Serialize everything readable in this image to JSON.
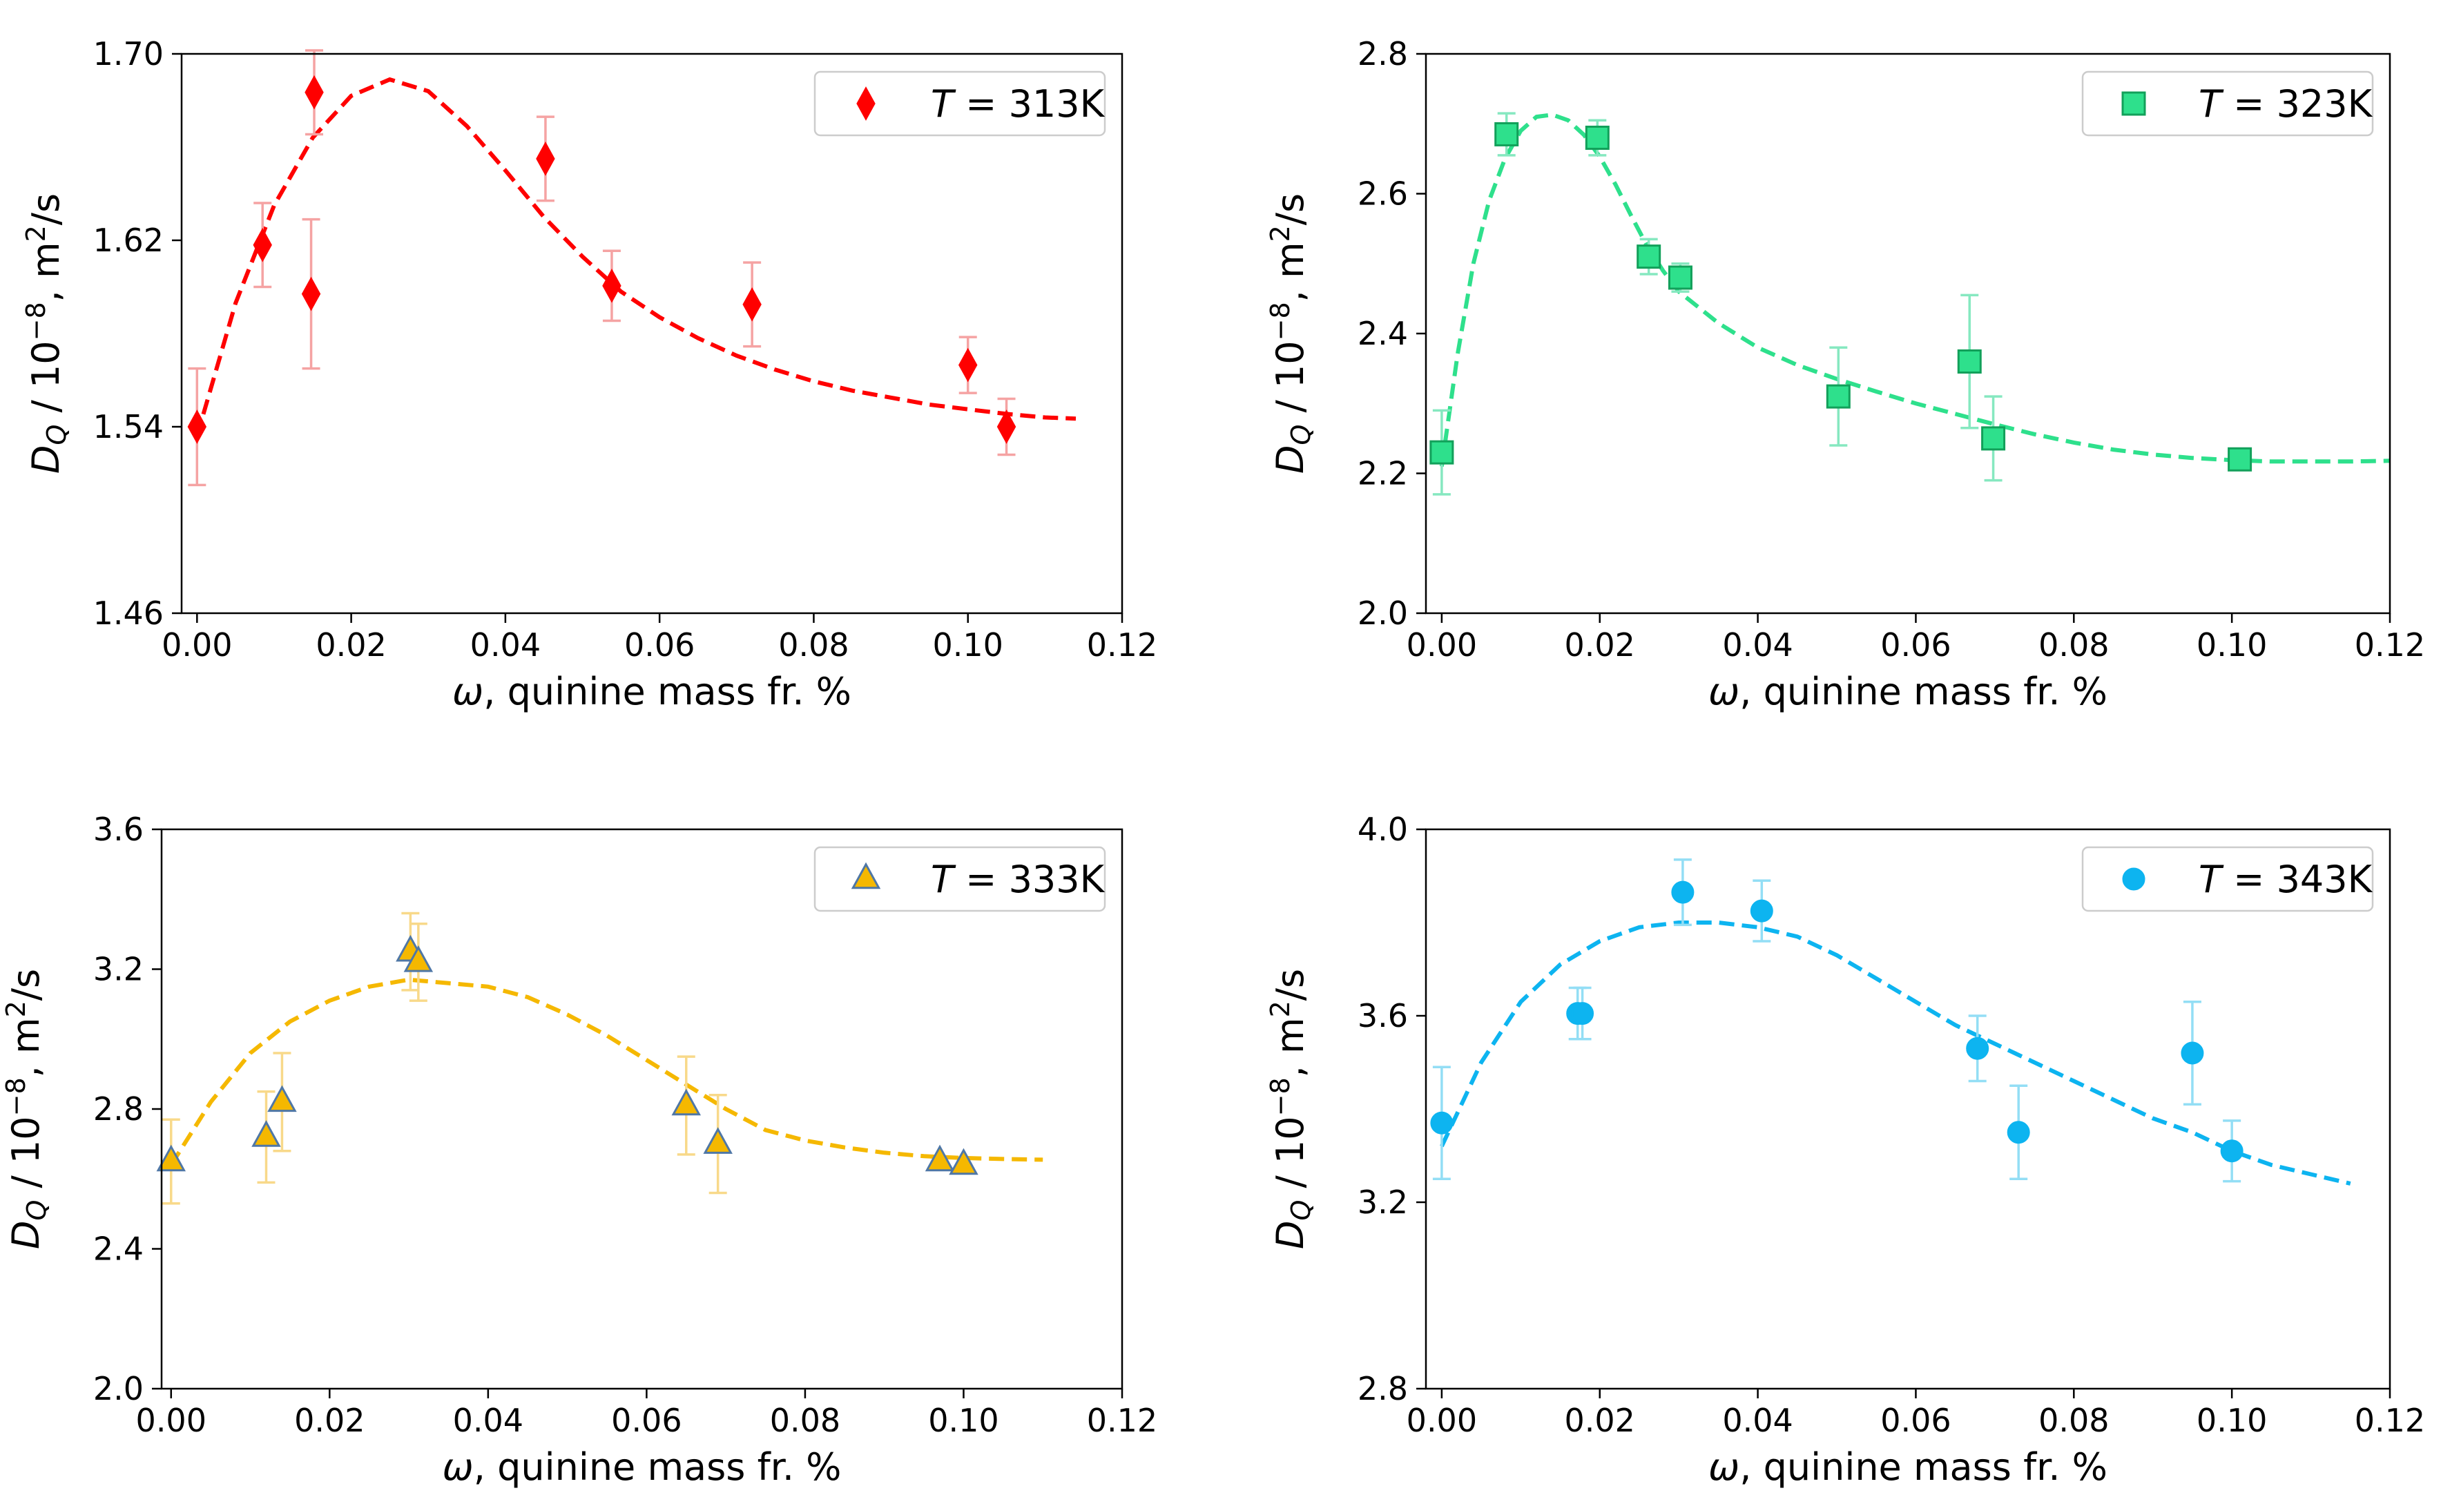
{
  "charts": [
    {
      "type": "scatter",
      "title": "",
      "xlabel_symbol": "ω",
      "xlabel_text": ", quinine mass fr. %",
      "ylabel_symbol": "D",
      "ylabel_subscript": "Q",
      "ylabel_text": " / 10",
      "ylabel_exponent": "−8",
      "ylabel_unit": ", m",
      "ylabel_unit_exp": "2",
      "ylabel_unit_tail": "/s",
      "xlim": [
        -0.002,
        0.12
      ],
      "ylim": [
        1.46,
        1.7
      ],
      "xticks": [
        0.0,
        0.02,
        0.04,
        0.06,
        0.08,
        0.1,
        0.12
      ],
      "xtick_labels": [
        "0.00",
        "0.02",
        "0.04",
        "0.06",
        "0.08",
        "0.10",
        "0.12"
      ],
      "yticks": [
        1.46,
        1.54,
        1.62,
        1.7
      ],
      "ytick_labels": [
        "1.46",
        "1.54",
        "1.62",
        "1.70"
      ],
      "legend_symbol": "T",
      "legend_text": " = 313K",
      "legend_position": "upper right",
      "marker": "diamond",
      "color": "#ff0000",
      "edge_color": "#ff0000",
      "error_color": "#f5a3a3",
      "points": [
        {
          "x": 0.0,
          "y": 1.54,
          "err": 0.025
        },
        {
          "x": 0.0085,
          "y": 1.618,
          "err": 0.018
        },
        {
          "x": 0.0148,
          "y": 1.597,
          "err": 0.032
        },
        {
          "x": 0.0152,
          "y": 1.6835,
          "err": 0.018
        },
        {
          "x": 0.0452,
          "y": 1.655,
          "err": 0.018
        },
        {
          "x": 0.0538,
          "y": 1.6005,
          "err": 0.015
        },
        {
          "x": 0.072,
          "y": 1.5925,
          "err": 0.018
        },
        {
          "x": 0.1,
          "y": 1.5665,
          "err": 0.012
        },
        {
          "x": 0.105,
          "y": 1.54,
          "err": 0.012
        }
      ],
      "fit": {
        "x": [
          0.0,
          0.005,
          0.01,
          0.015,
          0.02,
          0.025,
          0.03,
          0.035,
          0.04,
          0.045,
          0.05,
          0.055,
          0.06,
          0.065,
          0.07,
          0.075,
          0.08,
          0.085,
          0.09,
          0.095,
          0.1,
          0.105,
          0.11,
          0.114
        ],
        "y": [
          1.536,
          1.593,
          1.635,
          1.664,
          1.682,
          1.689,
          1.684,
          1.669,
          1.65,
          1.63,
          1.613,
          1.598,
          1.587,
          1.578,
          1.5705,
          1.5645,
          1.5595,
          1.5555,
          1.5525,
          1.5495,
          1.5475,
          1.5455,
          1.544,
          1.5435
        ]
      }
    },
    {
      "type": "scatter",
      "title": "",
      "xlabel_symbol": "ω",
      "xlabel_text": ", quinine mass fr. %",
      "ylabel_symbol": "D",
      "ylabel_subscript": "Q",
      "ylabel_text": " / 10",
      "ylabel_exponent": "−8",
      "ylabel_unit": ", m",
      "ylabel_unit_exp": "2",
      "ylabel_unit_tail": "/s",
      "xlim": [
        -0.002,
        0.12
      ],
      "ylim": [
        2.0,
        2.8
      ],
      "xticks": [
        0.0,
        0.02,
        0.04,
        0.06,
        0.08,
        0.1,
        0.12
      ],
      "xtick_labels": [
        "0.00",
        "0.02",
        "0.04",
        "0.06",
        "0.08",
        "0.10",
        "0.12"
      ],
      "yticks": [
        2.0,
        2.2,
        2.4,
        2.6,
        2.8
      ],
      "ytick_labels": [
        "2.0",
        "2.2",
        "2.4",
        "2.6",
        "2.8"
      ],
      "legend_symbol": "T",
      "legend_text": " = 323K",
      "legend_position": "upper right",
      "marker": "square",
      "color": "#2ee08c",
      "edge_color": "#12a05a",
      "error_color": "#86e8c0",
      "points": [
        {
          "x": 0.0,
          "y": 2.23,
          "err": 0.06
        },
        {
          "x": 0.0082,
          "y": 2.685,
          "err": 0.03
        },
        {
          "x": 0.0197,
          "y": 2.68,
          "err": 0.025
        },
        {
          "x": 0.0262,
          "y": 2.51,
          "err": 0.025
        },
        {
          "x": 0.0302,
          "y": 2.48,
          "err": 0.02
        },
        {
          "x": 0.0502,
          "y": 2.31,
          "err": 0.07
        },
        {
          "x": 0.0668,
          "y": 2.36,
          "err": 0.095
        },
        {
          "x": 0.0698,
          "y": 2.25,
          "err": 0.06
        },
        {
          "x": 0.101,
          "y": 2.22,
          "err": 0.0
        }
      ],
      "fit": {
        "x": [
          0.0,
          0.002,
          0.004,
          0.006,
          0.008,
          0.01,
          0.012,
          0.014,
          0.016,
          0.018,
          0.02,
          0.022,
          0.024,
          0.026,
          0.028,
          0.03,
          0.035,
          0.04,
          0.045,
          0.05,
          0.055,
          0.06,
          0.065,
          0.07,
          0.075,
          0.08,
          0.085,
          0.09,
          0.095,
          0.1,
          0.105,
          0.11,
          0.115,
          0.12
        ],
        "y": [
          2.21,
          2.37,
          2.5,
          2.59,
          2.65,
          2.69,
          2.71,
          2.713,
          2.705,
          2.684,
          2.653,
          2.613,
          2.568,
          2.525,
          2.49,
          2.46,
          2.415,
          2.38,
          2.355,
          2.335,
          2.317,
          2.3,
          2.285,
          2.27,
          2.256,
          2.244,
          2.234,
          2.227,
          2.222,
          2.219,
          2.217,
          2.217,
          2.217,
          2.218
        ]
      }
    },
    {
      "type": "scatter",
      "title": "",
      "xlabel_symbol": "ω",
      "xlabel_text": ", quinine mass fr. %",
      "ylabel_symbol": "D",
      "ylabel_subscript": "Q",
      "ylabel_text": " / 10",
      "ylabel_exponent": "−8",
      "ylabel_unit": ", m",
      "ylabel_unit_exp": "2",
      "ylabel_unit_tail": "/s",
      "xlim": [
        -0.0012,
        0.12
      ],
      "ylim": [
        2.0,
        3.6
      ],
      "xticks": [
        0.0,
        0.02,
        0.04,
        0.06,
        0.08,
        0.1,
        0.12
      ],
      "xtick_labels": [
        "0.00",
        "0.02",
        "0.04",
        "0.06",
        "0.08",
        "0.10",
        "0.12"
      ],
      "yticks": [
        2.0,
        2.4,
        2.8,
        3.2,
        3.6
      ],
      "ytick_labels": [
        "2.0",
        "2.4",
        "2.8",
        "3.2",
        "3.6"
      ],
      "legend_symbol": "T",
      "legend_text": " = 333K",
      "legend_position": "upper right",
      "marker": "triangle",
      "color": "#f5b800",
      "edge_color": "#4f77a6",
      "error_color": "#f8d98a",
      "points": [
        {
          "x": 0.0,
          "y": 2.65,
          "err": 0.12
        },
        {
          "x": 0.012,
          "y": 2.72,
          "err": 0.13
        },
        {
          "x": 0.014,
          "y": 2.82,
          "err": 0.14
        },
        {
          "x": 0.0302,
          "y": 3.25,
          "err": 0.11
        },
        {
          "x": 0.0312,
          "y": 3.22,
          "err": 0.11
        },
        {
          "x": 0.065,
          "y": 2.81,
          "err": 0.14
        },
        {
          "x": 0.069,
          "y": 2.7,
          "err": 0.14
        },
        {
          "x": 0.097,
          "y": 2.65,
          "err": 0.0
        },
        {
          "x": 0.1,
          "y": 2.64,
          "err": 0.0
        }
      ],
      "fit": {
        "x": [
          0.0,
          0.005,
          0.01,
          0.015,
          0.02,
          0.025,
          0.03,
          0.035,
          0.04,
          0.045,
          0.05,
          0.055,
          0.06,
          0.065,
          0.07,
          0.075,
          0.08,
          0.085,
          0.09,
          0.095,
          0.1,
          0.105,
          0.11
        ],
        "y": [
          2.64,
          2.82,
          2.96,
          3.05,
          3.11,
          3.15,
          3.17,
          3.16,
          3.15,
          3.12,
          3.07,
          3.01,
          2.94,
          2.87,
          2.8,
          2.74,
          2.71,
          2.69,
          2.675,
          2.665,
          2.66,
          2.657,
          2.655
        ]
      }
    },
    {
      "type": "scatter",
      "title": "",
      "xlabel_symbol": "ω",
      "xlabel_text": ", quinine mass fr. %",
      "ylabel_symbol": "D",
      "ylabel_subscript": "Q",
      "ylabel_text": " / 10",
      "ylabel_exponent": "−8",
      "ylabel_unit": ", m",
      "ylabel_unit_exp": "2",
      "ylabel_unit_tail": "/s",
      "xlim": [
        -0.002,
        0.12
      ],
      "ylim": [
        2.8,
        4.0
      ],
      "xticks": [
        0.0,
        0.02,
        0.04,
        0.06,
        0.08,
        0.1,
        0.12
      ],
      "xtick_labels": [
        "0.00",
        "0.02",
        "0.04",
        "0.06",
        "0.08",
        "0.10",
        "0.12"
      ],
      "yticks": [
        2.8,
        3.2,
        3.6,
        4.0
      ],
      "ytick_labels": [
        "2.8",
        "3.2",
        "3.6",
        "4.0"
      ],
      "legend_symbol": "T",
      "legend_text": " = 343K",
      "legend_position": "upper right",
      "marker": "circle",
      "color": "#0db4f0",
      "edge_color": "#0db4f0",
      "error_color": "#93def5",
      "points": [
        {
          "x": 0.0,
          "y": 3.37,
          "err": 0.12
        },
        {
          "x": 0.0172,
          "y": 3.605,
          "err": 0.055
        },
        {
          "x": 0.0178,
          "y": 3.605,
          "err": 0.055
        },
        {
          "x": 0.0305,
          "y": 3.865,
          "err": 0.07
        },
        {
          "x": 0.0405,
          "y": 3.825,
          "err": 0.065
        },
        {
          "x": 0.0678,
          "y": 3.53,
          "err": 0.07
        },
        {
          "x": 0.073,
          "y": 3.35,
          "err": 0.1
        },
        {
          "x": 0.095,
          "y": 3.52,
          "err": 0.11
        },
        {
          "x": 0.1,
          "y": 3.31,
          "err": 0.065
        }
      ],
      "fit": {
        "x": [
          0.0,
          0.005,
          0.01,
          0.015,
          0.02,
          0.025,
          0.03,
          0.035,
          0.04,
          0.045,
          0.05,
          0.055,
          0.06,
          0.065,
          0.07,
          0.075,
          0.08,
          0.085,
          0.09,
          0.095,
          0.1,
          0.105,
          0.11,
          0.115
        ],
        "y": [
          3.32,
          3.5,
          3.63,
          3.71,
          3.76,
          3.79,
          3.8,
          3.8,
          3.79,
          3.77,
          3.73,
          3.68,
          3.63,
          3.58,
          3.54,
          3.5,
          3.46,
          3.42,
          3.38,
          3.35,
          3.31,
          3.28,
          3.26,
          3.24
        ]
      }
    }
  ]
}
